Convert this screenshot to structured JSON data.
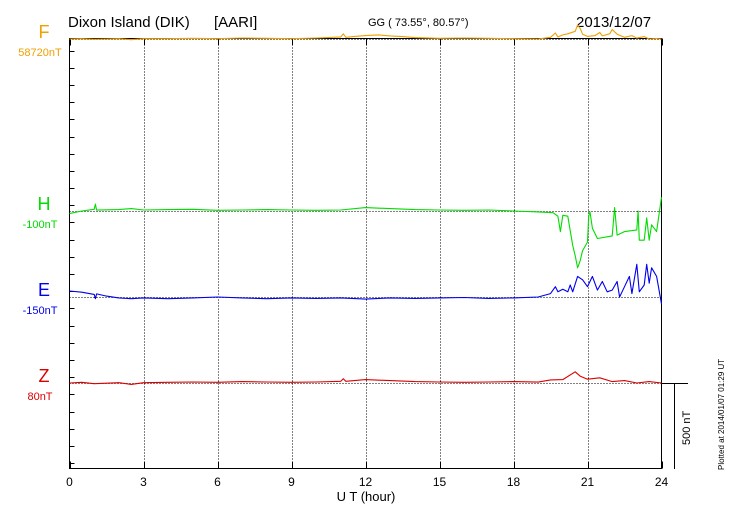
{
  "header": {
    "station": "Dixon Island (DIK)",
    "source": "[AARI]",
    "coords": "GG ( 73.55°,  80.57°)",
    "date": "2013/12/07"
  },
  "footer": {
    "plotted": "Plotted at 2014/01/07 01:29 UT"
  },
  "scale_bar": {
    "label": "500 nT",
    "value_nT": 500
  },
  "chart_data": {
    "type": "line",
    "title": "Dixon Island (DIK)  [AARI]",
    "xlabel": "U T (hour)",
    "ylabel": "",
    "xlim": [
      0,
      24
    ],
    "xticks": [
      0,
      3,
      6,
      9,
      12,
      15,
      18,
      21,
      24
    ],
    "xtick_labels": [
      "0",
      "3",
      "6",
      "9",
      "12",
      "15",
      "18",
      "21",
      "24"
    ],
    "grid": "vertical dotted every 3 h; dotted baseline per component",
    "units_per_division": "500 nT",
    "series": [
      {
        "name": "F",
        "baseline_label": "58720nT",
        "color": "#f0a000",
        "offset_nT": 1500,
        "points": [
          [
            0,
            0
          ],
          [
            0.5,
            2
          ],
          [
            1,
            -2
          ],
          [
            1.5,
            0
          ],
          [
            2,
            2
          ],
          [
            2.5,
            -4
          ],
          [
            3,
            2
          ],
          [
            4,
            2
          ],
          [
            5,
            4
          ],
          [
            6,
            2
          ],
          [
            7,
            6
          ],
          [
            8,
            4
          ],
          [
            9,
            2
          ],
          [
            10,
            6
          ],
          [
            11,
            12
          ],
          [
            11.1,
            30
          ],
          [
            11.2,
            10
          ],
          [
            11.5,
            14
          ],
          [
            12,
            20
          ],
          [
            12.5,
            24
          ],
          [
            13,
            18
          ],
          [
            13.5,
            14
          ],
          [
            14,
            8
          ],
          [
            15,
            4
          ],
          [
            16,
            6
          ],
          [
            17,
            4
          ],
          [
            18,
            2
          ],
          [
            19,
            0
          ],
          [
            19.5,
            10
          ],
          [
            19.7,
            35
          ],
          [
            19.8,
            12
          ],
          [
            20,
            24
          ],
          [
            20.2,
            30
          ],
          [
            20.5,
            45
          ],
          [
            20.6,
            80
          ],
          [
            20.7,
            62
          ],
          [
            20.8,
            28
          ],
          [
            21,
            15
          ],
          [
            21.3,
            20
          ],
          [
            21.5,
            38
          ],
          [
            21.6,
            18
          ],
          [
            21.9,
            30
          ],
          [
            22,
            55
          ],
          [
            22.2,
            28
          ],
          [
            22.5,
            10
          ],
          [
            22.8,
            20
          ],
          [
            23,
            5
          ],
          [
            23.3,
            14
          ],
          [
            23.5,
            0
          ],
          [
            23.8,
            3
          ],
          [
            24,
            0
          ]
        ]
      },
      {
        "name": "H",
        "baseline_label": "-100nT",
        "color": "#00dd00",
        "offset_nT": 500,
        "points": [
          [
            0,
            -15
          ],
          [
            0.5,
            0
          ],
          [
            1,
            10
          ],
          [
            1.05,
            40
          ],
          [
            1.1,
            5
          ],
          [
            2,
            8
          ],
          [
            2.5,
            14
          ],
          [
            3,
            6
          ],
          [
            4,
            8
          ],
          [
            5,
            10
          ],
          [
            6,
            4
          ],
          [
            7,
            6
          ],
          [
            8,
            8
          ],
          [
            9,
            6
          ],
          [
            10,
            4
          ],
          [
            11,
            6
          ],
          [
            12,
            20
          ],
          [
            13,
            14
          ],
          [
            14,
            8
          ],
          [
            15,
            6
          ],
          [
            16,
            4
          ],
          [
            17,
            6
          ],
          [
            18,
            0
          ],
          [
            19,
            -5
          ],
          [
            19.6,
            -10
          ],
          [
            19.8,
            -30
          ],
          [
            19.9,
            -120
          ],
          [
            20,
            -25
          ],
          [
            20.2,
            -30
          ],
          [
            20.4,
            -200
          ],
          [
            20.5,
            -260
          ],
          [
            20.6,
            -330
          ],
          [
            20.7,
            -290
          ],
          [
            20.8,
            -230
          ],
          [
            21,
            -180
          ],
          [
            21.05,
            -30
          ],
          [
            21.1,
            -5
          ],
          [
            21.2,
            -100
          ],
          [
            21.4,
            -160
          ],
          [
            21.8,
            -150
          ],
          [
            22,
            -145
          ],
          [
            22.1,
            20
          ],
          [
            22.2,
            -140
          ],
          [
            22.5,
            -120
          ],
          [
            23,
            -110
          ],
          [
            23.05,
            0
          ],
          [
            23.1,
            -170
          ],
          [
            23.3,
            -170
          ],
          [
            23.4,
            -40
          ],
          [
            23.5,
            -170
          ],
          [
            23.6,
            -80
          ],
          [
            23.8,
            -120
          ],
          [
            24,
            80
          ]
        ]
      },
      {
        "name": "E",
        "baseline_label": "-150nT",
        "color": "#0000ee",
        "offset_nT": 0,
        "points": [
          [
            0,
            35
          ],
          [
            0.5,
            28
          ],
          [
            1,
            15
          ],
          [
            1.05,
            -10
          ],
          [
            1.1,
            18
          ],
          [
            1.5,
            5
          ],
          [
            2,
            -5
          ],
          [
            2.5,
            -10
          ],
          [
            3,
            -5
          ],
          [
            4,
            -10
          ],
          [
            5,
            -5
          ],
          [
            6,
            0
          ],
          [
            7,
            -5
          ],
          [
            8,
            -10
          ],
          [
            9,
            -5
          ],
          [
            10,
            -8
          ],
          [
            11,
            -5
          ],
          [
            12,
            -12
          ],
          [
            13,
            -5
          ],
          [
            14,
            -8
          ],
          [
            15,
            -5
          ],
          [
            16,
            -3
          ],
          [
            17,
            -8
          ],
          [
            18,
            -5
          ],
          [
            19,
            0
          ],
          [
            19.5,
            20
          ],
          [
            19.7,
            60
          ],
          [
            19.8,
            30
          ],
          [
            20,
            45
          ],
          [
            20.2,
            30
          ],
          [
            20.3,
            70
          ],
          [
            20.4,
            30
          ],
          [
            20.6,
            120
          ],
          [
            20.8,
            100
          ],
          [
            21,
            60
          ],
          [
            21.2,
            120
          ],
          [
            21.4,
            40
          ],
          [
            21.6,
            90
          ],
          [
            21.8,
            30
          ],
          [
            22,
            40
          ],
          [
            22.2,
            90
          ],
          [
            22.3,
            0
          ],
          [
            22.5,
            60
          ],
          [
            22.7,
            120
          ],
          [
            22.8,
            20
          ],
          [
            23,
            190
          ],
          [
            23.1,
            30
          ],
          [
            23.3,
            70
          ],
          [
            23.4,
            190
          ],
          [
            23.5,
            80
          ],
          [
            23.6,
            170
          ],
          [
            23.8,
            120
          ],
          [
            24,
            -40
          ]
        ]
      },
      {
        "name": "Z",
        "baseline_label": "80nT",
        "color": "#dd0000",
        "offset_nT": -500,
        "points": [
          [
            0,
            0
          ],
          [
            0.5,
            4
          ],
          [
            1,
            -4
          ],
          [
            2,
            2
          ],
          [
            2.5,
            -8
          ],
          [
            3,
            2
          ],
          [
            4,
            4
          ],
          [
            5,
            6
          ],
          [
            6,
            4
          ],
          [
            7,
            8
          ],
          [
            8,
            6
          ],
          [
            9,
            4
          ],
          [
            10,
            6
          ],
          [
            11,
            10
          ],
          [
            11.1,
            25
          ],
          [
            11.2,
            10
          ],
          [
            12,
            20
          ],
          [
            13,
            14
          ],
          [
            14,
            8
          ],
          [
            15,
            6
          ],
          [
            16,
            4
          ],
          [
            17,
            6
          ],
          [
            18,
            8
          ],
          [
            19,
            5
          ],
          [
            19.5,
            18
          ],
          [
            20,
            20
          ],
          [
            20.5,
            65
          ],
          [
            20.7,
            40
          ],
          [
            21,
            22
          ],
          [
            21.5,
            30
          ],
          [
            22,
            8
          ],
          [
            22.5,
            14
          ],
          [
            23,
            0
          ],
          [
            23.5,
            8
          ],
          [
            24,
            0
          ]
        ]
      }
    ]
  }
}
